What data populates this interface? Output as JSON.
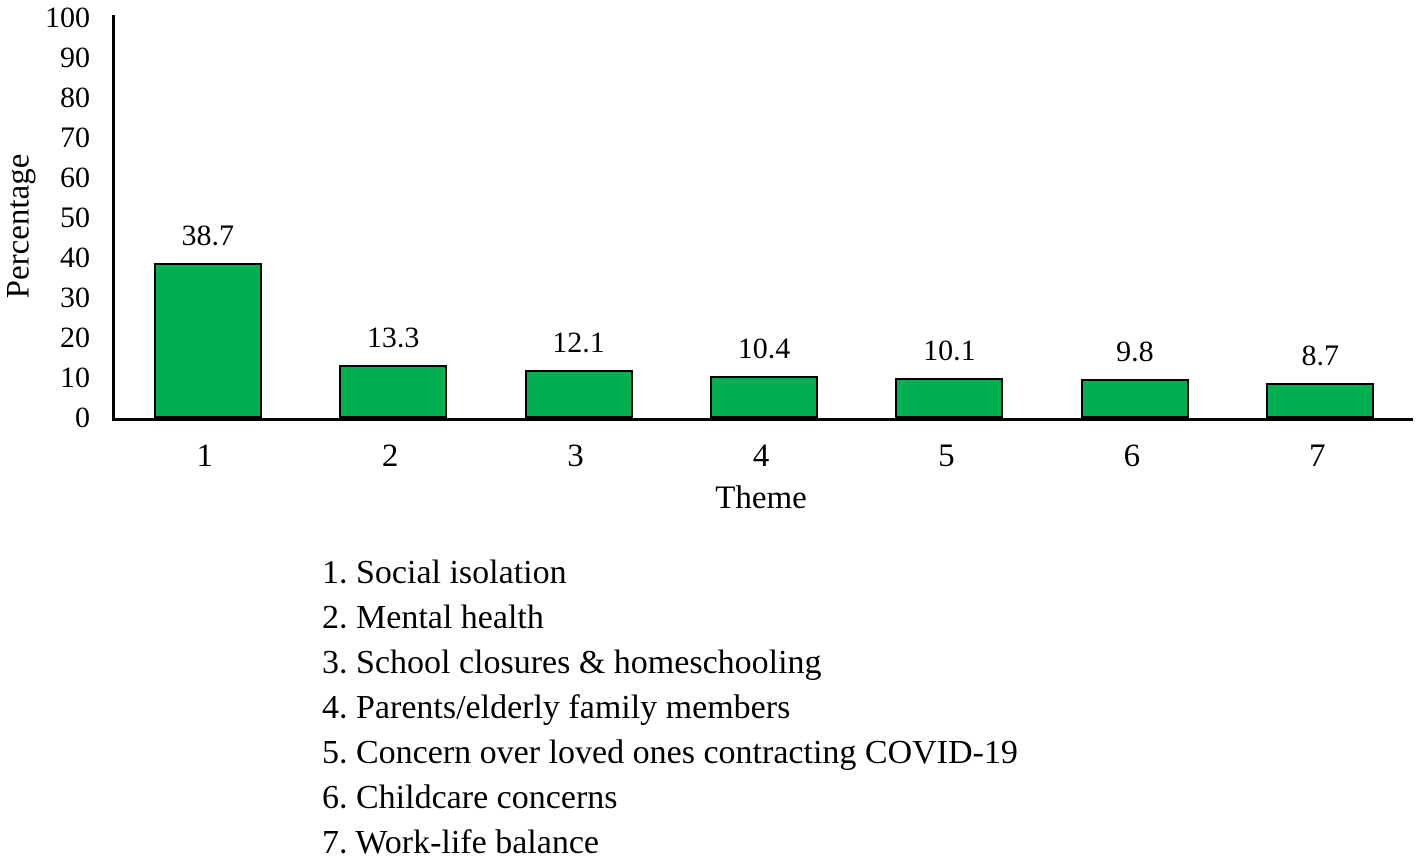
{
  "figure": {
    "background_color": "#ffffff",
    "text_color": "#000000"
  },
  "chart_data": {
    "type": "bar",
    "title": "",
    "categories": [
      "1",
      "2",
      "3",
      "4",
      "5",
      "6",
      "7"
    ],
    "values": [
      38.7,
      13.3,
      12.1,
      10.4,
      10.1,
      9.8,
      8.7
    ],
    "value_labels": [
      "38.7",
      "13.3",
      "12.1",
      "10.4",
      "10.1",
      "9.8",
      "8.7"
    ],
    "xlabel": "Theme",
    "ylabel": "Percentage",
    "ylim": [
      0,
      100
    ],
    "ytick_step": 10,
    "yticks": [
      0,
      10,
      20,
      30,
      40,
      50,
      60,
      70,
      80,
      90,
      100
    ],
    "grid": "off",
    "legend_position": "below-chart",
    "bar_fill_color": "#00B050",
    "bar_border_color": "#000000",
    "axis_color": "#000000",
    "legend_items": [
      "1. Social isolation",
      "2. Mental health",
      "3. School closures & homeschooling",
      "4. Parents/elderly family members",
      "5. Concern over loved ones contracting COVID-19",
      "6. Childcare concerns",
      "7. Work-life balance"
    ]
  }
}
